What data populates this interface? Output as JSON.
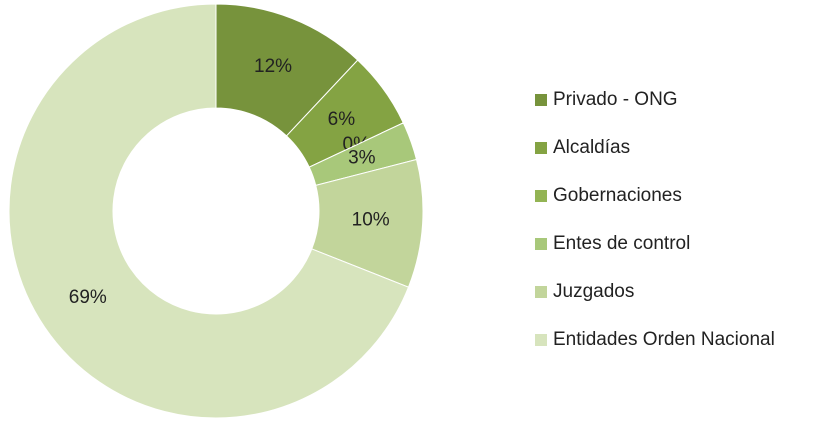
{
  "chart_data": {
    "type": "donut",
    "categories": [
      "Privado - ONG",
      "Alcaldías",
      "Gobernaciones",
      "Entes de control",
      "Juzgados",
      "Entidades Orden Nacional"
    ],
    "values": [
      12,
      6,
      0,
      3,
      10,
      69
    ],
    "value_labels": [
      "12%",
      "6%",
      "0%",
      "3%",
      "10%",
      "69%"
    ],
    "colors": [
      "#77933c",
      "#84a343",
      "#93b454",
      "#a8c87a",
      "#c2d59b",
      "#d7e4bd"
    ],
    "legend": "right"
  }
}
